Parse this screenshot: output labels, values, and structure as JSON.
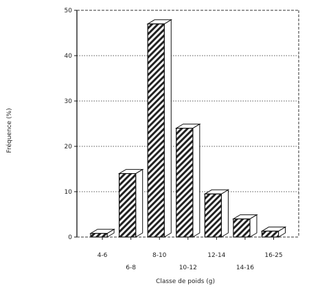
{
  "chart_data": {
    "type": "bar",
    "categories": [
      "4-6",
      "6-8",
      "8-10",
      "10-12",
      "12-14",
      "14-16",
      "16-25"
    ],
    "values": [
      0.8,
      14,
      47,
      24,
      9.5,
      4,
      1.3
    ],
    "title": "",
    "xlabel": "Classe de poids (g)",
    "ylabel": "Fréquence (%)",
    "ylim": [
      0,
      50
    ],
    "yticks": [
      0,
      10,
      20,
      30,
      40,
      50
    ],
    "grid": "dotted horizontal",
    "style": "3D bars with diagonal hatching",
    "colors": {
      "bar": "#222222",
      "hatch_bg": "#ffffff"
    }
  }
}
